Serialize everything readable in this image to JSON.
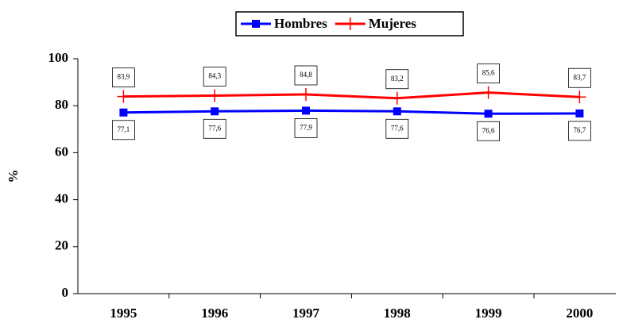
{
  "chart_data": {
    "type": "line",
    "y_label": "%",
    "categories": [
      "1995",
      "1996",
      "1997",
      "1998",
      "1999",
      "2000"
    ],
    "series": [
      {
        "name": "Hombres",
        "color": "#0000ff",
        "marker": "square",
        "values": [
          77.1,
          77.6,
          77.9,
          77.6,
          76.6,
          76.7
        ],
        "value_labels": [
          "77,1",
          "77,6",
          "77,9",
          "77,6",
          "76,6",
          "76,7"
        ]
      },
      {
        "name": "Mujeres",
        "color": "#ff0000",
        "marker": "plus",
        "values": [
          83.9,
          84.3,
          84.8,
          83.2,
          85.6,
          83.7
        ],
        "value_labels": [
          "83,9",
          "84,3",
          "84,8",
          "83,2",
          "85,6",
          "83,7"
        ]
      }
    ],
    "ylim": [
      0,
      100
    ],
    "yticks": [
      0,
      20,
      40,
      60,
      80,
      100
    ],
    "legend": "top"
  }
}
